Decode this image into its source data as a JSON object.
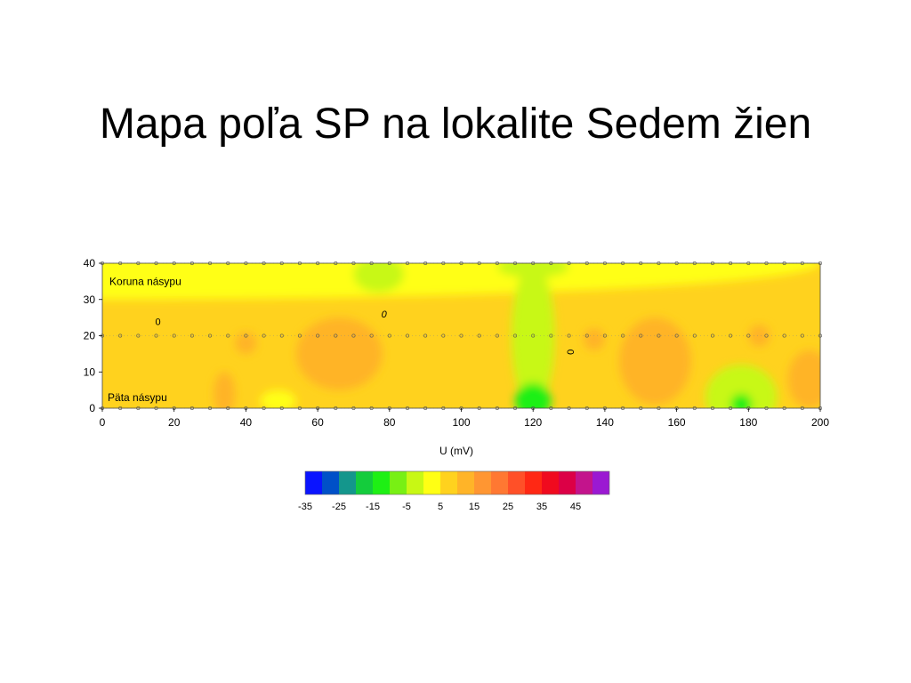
{
  "slide": {
    "title": "Mapa poľa SP na lokalite Sedem žien"
  },
  "chart_data": {
    "type": "heatmap",
    "title": "",
    "xlabel": "",
    "ylabel": "",
    "xlim": [
      0,
      200
    ],
    "ylim": [
      0,
      40
    ],
    "x_ticks": [
      0,
      20,
      40,
      60,
      80,
      100,
      120,
      140,
      160,
      180,
      200
    ],
    "y_ticks": [
      0,
      10,
      20,
      30,
      40
    ],
    "annotations": [
      {
        "text": "Koruna násypu",
        "x": 1.5,
        "y": 34
      },
      {
        "text": "Päta násypu",
        "x": 1,
        "y": 2
      }
    ],
    "contour_labels": [
      {
        "text": "0",
        "x": 15.5,
        "y": 23
      },
      {
        "text": "0",
        "x": 78.5,
        "y": 25
      },
      {
        "text": "0",
        "x": 129.5,
        "y": 15.5
      }
    ],
    "measurement_lines_y": [
      0,
      20,
      40
    ],
    "measurement_spacing_x": 5,
    "field_blobs": [
      {
        "x": 0,
        "y": 40,
        "rx": 200,
        "ry": 10,
        "value": -5
      },
      {
        "x": 120,
        "y": 20,
        "rx": 6,
        "ry": 20,
        "value": -10
      },
      {
        "x": 120,
        "y": 2,
        "rx": 5,
        "ry": 5,
        "value": -20
      },
      {
        "x": 178,
        "y": 3,
        "rx": 10,
        "ry": 9,
        "value": -8
      },
      {
        "x": 178,
        "y": 1,
        "rx": 3,
        "ry": 3,
        "value": -20
      },
      {
        "x": 49,
        "y": 2,
        "rx": 5,
        "ry": 3,
        "value": -5
      },
      {
        "x": 77,
        "y": 37,
        "rx": 7,
        "ry": 5,
        "value": -10
      },
      {
        "x": 120,
        "y": 39,
        "rx": 10,
        "ry": 3,
        "value": -10
      },
      {
        "x": 66,
        "y": 15,
        "rx": 12,
        "ry": 10,
        "value": 8
      },
      {
        "x": 40,
        "y": 18,
        "rx": 3,
        "ry": 3,
        "value": 8
      },
      {
        "x": 34,
        "y": 4,
        "rx": 3,
        "ry": 6,
        "value": 8
      },
      {
        "x": 154,
        "y": 13,
        "rx": 10,
        "ry": 12,
        "value": 8
      },
      {
        "x": 137,
        "y": 19,
        "rx": 3,
        "ry": 3,
        "value": 8
      },
      {
        "x": 183,
        "y": 20,
        "rx": 3,
        "ry": 3,
        "value": 8
      },
      {
        "x": 197,
        "y": 8,
        "rx": 6,
        "ry": 8,
        "value": 8
      }
    ],
    "colorbar": {
      "label": "U (mV)",
      "labels": [
        "-35",
        "-25",
        "-15",
        "-5",
        "5",
        "15",
        "25",
        "35",
        "45"
      ],
      "colors": [
        "#0a14ff",
        "#0050c8",
        "#14968c",
        "#14cc3c",
        "#1ef014",
        "#78f014",
        "#c8f814",
        "#ffff14",
        "#ffd21e",
        "#ffb428",
        "#ff9632",
        "#ff7832",
        "#ff5028",
        "#ff2814",
        "#f00a1e",
        "#dc0046",
        "#c3148c",
        "#9b19d2"
      ]
    }
  }
}
